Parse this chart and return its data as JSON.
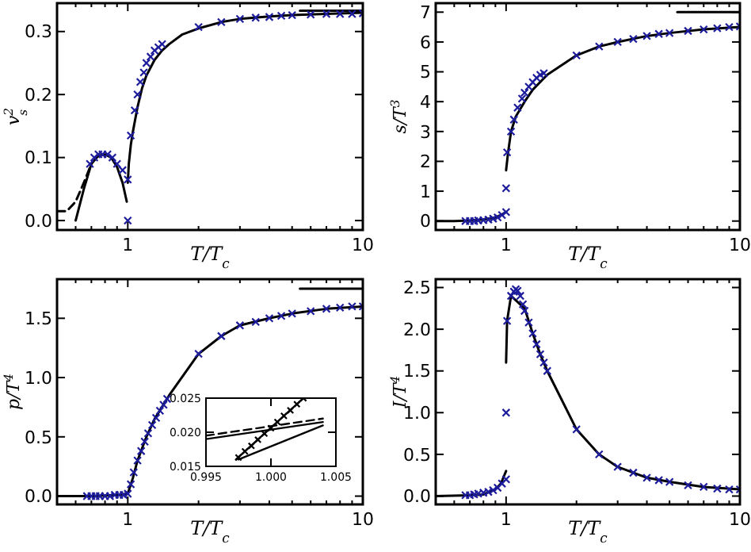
{
  "chart_data": [
    {
      "type": "line",
      "xlabel": "T/T$_{c}$",
      "ylabel": "v$_{s}$$^{2}$",
      "log": "x",
      "xlim": [
        0.5,
        10
      ],
      "ylim": [
        -0.015,
        0.345
      ],
      "xticks": [
        {
          "value": 0.5,
          "label": null
        },
        {
          "value": 0.6,
          "label": null
        },
        {
          "value": 0.7,
          "label": null
        },
        {
          "value": 0.8,
          "label": null
        },
        {
          "value": 0.9,
          "label": null
        },
        1,
        {
          "value": 2,
          "label": null
        },
        {
          "value": 3,
          "label": null
        },
        {
          "value": 4,
          "label": null
        },
        {
          "value": 5,
          "label": null
        },
        {
          "value": 6,
          "label": null
        },
        {
          "value": 7,
          "label": null
        },
        {
          "value": 8,
          "label": null
        },
        {
          "value": 9,
          "label": null
        },
        10
      ],
      "yticks": [
        {
          "value": 0,
          "label": "0.0"
        },
        0.1,
        0.2,
        0.3
      ],
      "grid": false,
      "series": [
        {
          "type": "line",
          "color": "#000000",
          "line_style": "solid",
          "x": [
            0.6,
            0.65,
            0.7,
            0.75,
            0.8,
            0.85,
            0.9,
            0.95,
            0.99
          ],
          "values": [
            0,
            0.05,
            0.09,
            0.103,
            0.105,
            0.1,
            0.085,
            0.06,
            0.03
          ]
        },
        {
          "type": "line",
          "color": "#000000",
          "line_style": "solid",
          "x": [
            1.0,
            1.01,
            1.03,
            1.05,
            1.1,
            1.15,
            1.2,
            1.3,
            1.4,
            1.5,
            1.7,
            2,
            2.5,
            3,
            4,
            5,
            7,
            10
          ],
          "values": [
            0.06,
            0.09,
            0.12,
            0.14,
            0.18,
            0.21,
            0.23,
            0.255,
            0.27,
            0.28,
            0.295,
            0.305,
            0.315,
            0.32,
            0.324,
            0.326,
            0.328,
            0.33
          ]
        },
        {
          "type": "line",
          "color": "#000000",
          "line_style": "dashed",
          "x": [
            0.5,
            0.55,
            0.6,
            0.65,
            0.7
          ],
          "values": [
            0.015,
            0.015,
            0.03,
            0.06,
            0.09
          ]
        },
        {
          "type": "line",
          "color": "#000000",
          "line_style": "solid",
          "x": [
            5.4,
            10
          ],
          "values": [
            0.333,
            0.333
          ]
        },
        {
          "type": "scatter",
          "color": "#1c1c9c",
          "marker": "cross",
          "x": [
            0.69,
            0.72,
            0.75,
            0.78,
            0.82,
            0.86,
            0.9,
            0.95,
            1.0,
            1.0,
            1.03,
            1.07,
            1.1,
            1.13,
            1.17,
            1.2,
            1.25,
            1.3,
            1.35,
            1.4,
            2,
            2.5,
            3,
            3.5,
            4,
            4.5,
            5,
            6,
            7,
            8,
            9,
            10
          ],
          "values": [
            0.09,
            0.1,
            0.105,
            0.105,
            0.105,
            0.1,
            0.09,
            0.08,
            0.0,
            0.065,
            0.135,
            0.175,
            0.2,
            0.22,
            0.235,
            0.25,
            0.26,
            0.27,
            0.275,
            0.28,
            0.307,
            0.315,
            0.32,
            0.322,
            0.323,
            0.325,
            0.326,
            0.327,
            0.328,
            0.328,
            0.328,
            0.329
          ]
        }
      ]
    },
    {
      "type": "line",
      "xlabel": "T/T$_{c}$",
      "ylabel": "s/T$^{3}$",
      "log": "x",
      "xlim": [
        0.5,
        10
      ],
      "ylim": [
        -0.3,
        7.3
      ],
      "xticks": [
        {
          "value": 0.5,
          "label": null
        },
        {
          "value": 0.6,
          "label": null
        },
        {
          "value": 0.7,
          "label": null
        },
        {
          "value": 0.8,
          "label": null
        },
        {
          "value": 0.9,
          "label": null
        },
        1,
        {
          "value": 2,
          "label": null
        },
        {
          "value": 3,
          "label": null
        },
        {
          "value": 4,
          "label": null
        },
        {
          "value": 5,
          "label": null
        },
        {
          "value": 6,
          "label": null
        },
        {
          "value": 7,
          "label": null
        },
        {
          "value": 8,
          "label": null
        },
        {
          "value": 9,
          "label": null
        },
        10
      ],
      "yticks": [
        0,
        1,
        2,
        3,
        4,
        5,
        6,
        7
      ],
      "grid": false,
      "series": [
        {
          "type": "line",
          "color": "#000000",
          "line_style": "solid",
          "x": [
            0.5,
            0.6,
            0.7,
            0.8,
            0.9,
            0.95,
            1.0
          ],
          "values": [
            0,
            0,
            0.02,
            0.05,
            0.12,
            0.2,
            0.3
          ]
        },
        {
          "type": "line",
          "color": "#000000",
          "line_style": "solid",
          "x": [
            1.0,
            1.02,
            1.05,
            1.1,
            1.2,
            1.3,
            1.5,
            2,
            2.5,
            3,
            4,
            5,
            7,
            10
          ],
          "values": [
            1.7,
            2.3,
            3.0,
            3.5,
            4.0,
            4.4,
            4.9,
            5.55,
            5.85,
            6.0,
            6.2,
            6.3,
            6.42,
            6.5
          ]
        },
        {
          "type": "line",
          "color": "#000000",
          "line_style": "solid",
          "x": [
            5.4,
            10
          ],
          "values": [
            7,
            7
          ]
        },
        {
          "type": "scatter",
          "color": "#1c1c9c",
          "marker": "cross",
          "x": [
            0.67,
            0.7,
            0.73,
            0.76,
            0.8,
            0.84,
            0.88,
            0.92,
            0.96,
            1.0,
            1.0,
            1.01,
            1.05,
            1.08,
            1.12,
            1.17,
            1.2,
            1.25,
            1.3,
            1.35,
            1.4,
            1.45,
            2,
            2.5,
            3,
            3.5,
            4,
            4.5,
            5,
            6,
            7,
            8,
            9,
            10
          ],
          "values": [
            0,
            0,
            0,
            0.02,
            0.03,
            0.05,
            0.08,
            0.12,
            0.2,
            0.3,
            1.1,
            2.3,
            3.0,
            3.4,
            3.8,
            4.1,
            4.3,
            4.5,
            4.65,
            4.8,
            4.9,
            4.95,
            5.55,
            5.85,
            6.0,
            6.1,
            6.2,
            6.27,
            6.3,
            6.37,
            6.42,
            6.46,
            6.5,
            6.52
          ]
        }
      ]
    },
    {
      "type": "line",
      "xlabel": "T/T$_{c}$",
      "ylabel": "p/T$^{4}$",
      "log": "x",
      "xlim": [
        0.5,
        10
      ],
      "ylim": [
        -0.07,
        1.83
      ],
      "xticks": [
        {
          "value": 0.5,
          "label": null
        },
        {
          "value": 0.6,
          "label": null
        },
        {
          "value": 0.7,
          "label": null
        },
        {
          "value": 0.8,
          "label": null
        },
        {
          "value": 0.9,
          "label": null
        },
        1,
        {
          "value": 2,
          "label": null
        },
        {
          "value": 3,
          "label": null
        },
        {
          "value": 4,
          "label": null
        },
        {
          "value": 5,
          "label": null
        },
        {
          "value": 6,
          "label": null
        },
        {
          "value": 7,
          "label": null
        },
        {
          "value": 8,
          "label": null
        },
        {
          "value": 9,
          "label": null
        },
        10
      ],
      "yticks": [
        {
          "value": 0,
          "label": "0.0"
        },
        0.5,
        {
          "value": 1,
          "label": "1.0"
        },
        1.5
      ],
      "grid": false,
      "series": [
        {
          "type": "line",
          "color": "#000000",
          "line_style": "solid",
          "x": [
            0.5,
            0.7,
            0.9,
            1.0,
            1.05,
            1.1,
            1.2,
            1.3,
            1.5,
            2,
            2.5,
            3,
            4,
            5,
            7,
            10
          ],
          "values": [
            0,
            0,
            0.01,
            0.02,
            0.15,
            0.3,
            0.5,
            0.65,
            0.85,
            1.2,
            1.35,
            1.44,
            1.5,
            1.54,
            1.58,
            1.6
          ]
        },
        {
          "type": "line",
          "color": "#000000",
          "line_style": "solid",
          "x": [
            5.4,
            10
          ],
          "values": [
            1.75,
            1.75
          ]
        },
        {
          "type": "scatter",
          "color": "#1c1c9c",
          "marker": "cross",
          "x": [
            0.67,
            0.7,
            0.73,
            0.76,
            0.8,
            0.84,
            0.88,
            0.92,
            0.96,
            1.0,
            1.03,
            1.06,
            1.1,
            1.14,
            1.18,
            1.22,
            1.27,
            1.32,
            1.37,
            1.42,
            1.47,
            2,
            2.5,
            3,
            3.5,
            4,
            4.5,
            5,
            6,
            7,
            8,
            9,
            10
          ],
          "values": [
            0,
            0,
            0,
            0,
            0,
            0,
            0.01,
            0.01,
            0.01,
            0.02,
            0.1,
            0.2,
            0.3,
            0.38,
            0.46,
            0.53,
            0.6,
            0.66,
            0.72,
            0.77,
            0.82,
            1.2,
            1.35,
            1.44,
            1.47,
            1.5,
            1.52,
            1.54,
            1.56,
            1.58,
            1.59,
            1.6,
            1.6
          ]
        }
      ]
    },
    {
      "type": "line",
      "log": false,
      "xlim": [
        0.995,
        1.005
      ],
      "ylim": [
        0.015,
        0.025
      ],
      "xticks": [
        0.995,
        {
          "value": 1,
          "label": "1.000"
        },
        1.005
      ],
      "yticks": [
        0.015,
        {
          "value": 0.02,
          "label": "0.020"
        },
        0.025
      ],
      "grid": false,
      "series": [
        {
          "type": "line",
          "color": "#000000",
          "line_style": "solid",
          "x": [
            0.9973,
            1.0025
          ],
          "values": [
            0.016,
            0.025
          ]
        },
        {
          "type": "scatter",
          "color": "#000000",
          "marker": "cross",
          "x": [
            0.9975,
            0.998,
            0.9985,
            0.999,
            0.9995,
            1.0,
            1.0005,
            1.001,
            1.0015,
            1.002,
            1.0025
          ],
          "values": [
            0.0163,
            0.0172,
            0.018,
            0.0189,
            0.0198,
            0.0206,
            0.0215,
            0.0224,
            0.0232,
            0.0241,
            0.025
          ]
        },
        {
          "type": "line",
          "color": "#000000",
          "line_style": "solid",
          "x": [
            0.995,
            1.004
          ],
          "values": [
            0.019,
            0.0215
          ]
        },
        {
          "type": "line",
          "color": "#000000",
          "line_style": "dashed",
          "x": [
            0.995,
            1.004
          ],
          "values": [
            0.0195,
            0.022
          ]
        },
        {
          "type": "line",
          "color": "#000000",
          "line_style": "solid",
          "x": [
            0.9975,
            1.004
          ],
          "values": [
            0.016,
            0.021
          ]
        }
      ]
    },
    {
      "type": "line",
      "xlabel": "T/T$_{c}$",
      "ylabel": "I/T$^{4}$",
      "log": "x",
      "xlim": [
        0.5,
        10
      ],
      "ylim": [
        -0.1,
        2.6
      ],
      "xticks": [
        {
          "value": 0.5,
          "label": null
        },
        {
          "value": 0.6,
          "label": null
        },
        {
          "value": 0.7,
          "label": null
        },
        {
          "value": 0.8,
          "label": null
        },
        {
          "value": 0.9,
          "label": null
        },
        1,
        {
          "value": 2,
          "label": null
        },
        {
          "value": 3,
          "label": null
        },
        {
          "value": 4,
          "label": null
        },
        {
          "value": 5,
          "label": null
        },
        {
          "value": 6,
          "label": null
        },
        {
          "value": 7,
          "label": null
        },
        {
          "value": 8,
          "label": null
        },
        {
          "value": 9,
          "label": null
        },
        10
      ],
      "yticks": [
        {
          "value": 0,
          "label": "0.0"
        },
        0.5,
        {
          "value": 1,
          "label": "1.0"
        },
        1.5,
        {
          "value": 2,
          "label": "2.0"
        },
        2.5
      ],
      "grid": false,
      "series": [
        {
          "type": "line",
          "color": "#000000",
          "line_style": "solid",
          "x": [
            0.5,
            0.7,
            0.8,
            0.9,
            0.95,
            1.0
          ],
          "values": [
            0,
            0.01,
            0.02,
            0.08,
            0.15,
            0.3
          ]
        },
        {
          "type": "line",
          "color": "#000000",
          "line_style": "solid",
          "x": [
            1.0,
            1.01,
            1.05,
            1.2,
            1.3,
            1.4,
            1.5,
            2,
            2.5,
            3,
            4,
            5,
            7,
            10
          ],
          "values": [
            1.6,
            2.1,
            2.4,
            2.25,
            1.95,
            1.7,
            1.5,
            0.8,
            0.5,
            0.35,
            0.22,
            0.17,
            0.11,
            0.08
          ]
        },
        {
          "type": "scatter",
          "color": "#1c1c9c",
          "marker": "cross",
          "x": [
            0.67,
            0.7,
            0.73,
            0.76,
            0.8,
            0.84,
            0.88,
            0.92,
            0.96,
            1.0,
            1.0,
            1.01,
            1.05,
            1.08,
            1.1,
            1.12,
            1.15,
            1.18,
            1.2,
            1.25,
            1.3,
            1.35,
            1.4,
            1.45,
            1.5,
            2,
            2.5,
            3,
            3.5,
            4,
            4.5,
            5,
            6,
            7,
            8,
            9,
            10
          ],
          "values": [
            0.01,
            0.01,
            0.02,
            0.03,
            0.04,
            0.05,
            0.07,
            0.1,
            0.15,
            0.2,
            1.0,
            2.1,
            2.4,
            2.45,
            2.48,
            2.46,
            2.4,
            2.3,
            2.22,
            2.08,
            1.95,
            1.82,
            1.7,
            1.6,
            1.5,
            0.8,
            0.5,
            0.35,
            0.28,
            0.22,
            0.19,
            0.17,
            0.13,
            0.11,
            0.09,
            0.08,
            0.08
          ]
        }
      ]
    }
  ]
}
